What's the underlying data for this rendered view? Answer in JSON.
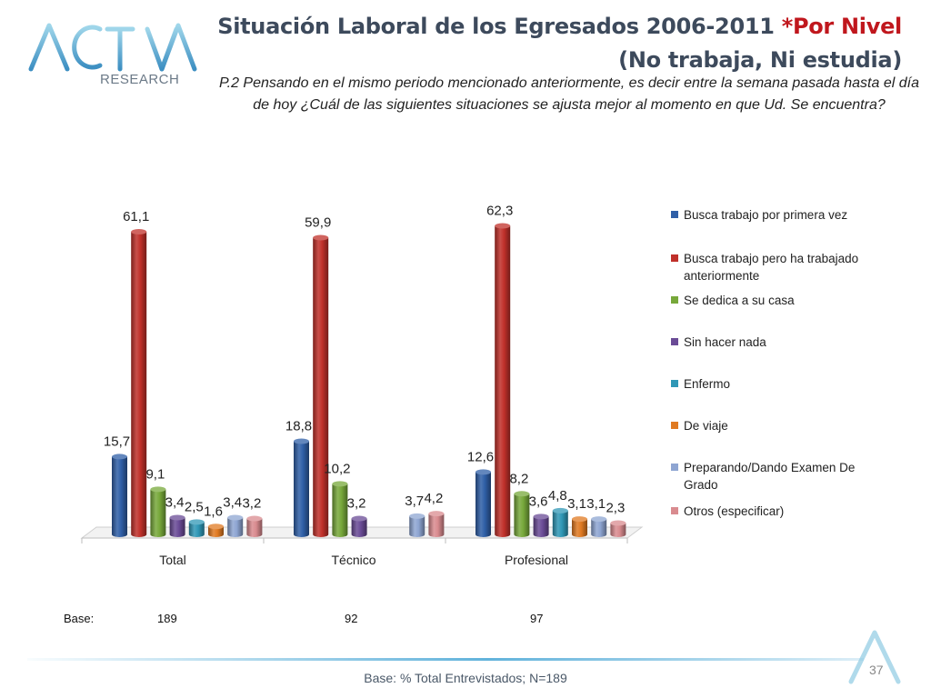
{
  "header": {
    "logo_text_top": "ACTIVA",
    "logo_text_bottom": "RESEARCH",
    "title_line1_plain": "Situación Laboral de los Egresados 2006-2011 ",
    "title_line1_accent": "*Por Nivel",
    "title_line2": "(No trabaja, Ni estudia)",
    "question": "P.2  Pensando en el mismo periodo mencionado anteriormente, es decir entre la semana pasada hasta el día de hoy ¿Cuál de las siguientes situaciones se ajusta mejor al momento en que Ud. Se encuentra?"
  },
  "chart_data": {
    "type": "bar",
    "categories": [
      "Total",
      "Técnico",
      "Profesional"
    ],
    "series": [
      {
        "name": "Busca trabajo por primera vez",
        "color": "#2f5fa7",
        "values": [
          15.7,
          18.8,
          12.6
        ],
        "labels": [
          "15,7",
          "18,8",
          "12,6"
        ]
      },
      {
        "name": "Busca trabajo pero ha trabajado anteriormente",
        "color": "#c0302a",
        "values": [
          61.1,
          59.9,
          62.3
        ],
        "labels": [
          "61,1",
          "59,9",
          "62,3"
        ]
      },
      {
        "name": "Se dedica a su casa",
        "color": "#77a83a",
        "values": [
          9.1,
          10.2,
          8.2
        ],
        "labels": [
          "9,1",
          "10,2",
          "8,2"
        ]
      },
      {
        "name": "Sin hacer nada",
        "color": "#6a4b96",
        "values": [
          3.4,
          3.2,
          3.6
        ],
        "labels": [
          "3,4",
          "3,2",
          "3,6"
        ]
      },
      {
        "name": "Enfermo",
        "color": "#2f97b6",
        "values": [
          2.5,
          null,
          4.8
        ],
        "labels": [
          "2,5",
          "",
          "4,8"
        ]
      },
      {
        "name": "De viaje",
        "color": "#e07a22",
        "values": [
          1.6,
          null,
          3.1
        ],
        "labels": [
          "1,6",
          "",
          "3,1"
        ]
      },
      {
        "name": "Preparando/Dando Examen De Grado",
        "color": "#8ea5d2",
        "values": [
          3.4,
          3.7,
          3.1
        ],
        "labels": [
          "3,4",
          "3,7",
          "3,1"
        ]
      },
      {
        "name": "Otros (especificar)",
        "color": "#d98b8f",
        "values": [
          3.2,
          4.2,
          2.3
        ],
        "labels": [
          "3,2",
          "4,2",
          "2,3"
        ]
      }
    ],
    "ylim": [
      0,
      65
    ],
    "grid": false,
    "legend": "right"
  },
  "base_row": {
    "label": "Base:",
    "values": [
      "189",
      "92",
      "97"
    ]
  },
  "footer": {
    "note": "Base: % Total Entrevistados; N=189",
    "page_number": "37"
  }
}
